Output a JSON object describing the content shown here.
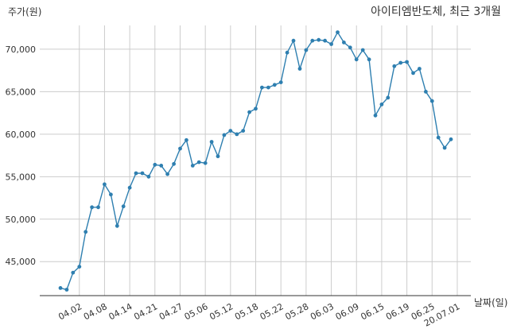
{
  "chart_data": {
    "type": "line",
    "title": "아이티엠반도체, 최근 3개월",
    "ylabel": "주가(원)",
    "xlabel": "날짜(일)",
    "ylim": [
      41000,
      72800
    ],
    "yticks": [
      45000,
      50000,
      55000,
      60000,
      65000,
      70000
    ],
    "ytick_labels": [
      "45,000",
      "50,000",
      "55,000",
      "60,000",
      "65,000",
      "70,000"
    ],
    "xtick_labels": [
      "04.02",
      "04.08",
      "04.14",
      "04.21",
      "04.27",
      "05.06",
      "05.12",
      "05.18",
      "05.22",
      "05.28",
      "06.03",
      "06.09",
      "06.15",
      "06.19",
      "06.25",
      "20.07.01"
    ],
    "xtick_index": [
      3,
      7,
      11,
      15,
      19,
      23,
      27,
      31,
      35,
      39,
      43,
      47,
      51,
      55,
      59,
      63
    ],
    "grid": true,
    "line_color": "#2e7fb0",
    "values": [
      41900,
      41700,
      43700,
      44400,
      48500,
      51400,
      51400,
      54100,
      52900,
      49200,
      51500,
      53700,
      55400,
      55400,
      55000,
      56400,
      56300,
      55300,
      56500,
      58300,
      59300,
      56300,
      56700,
      56600,
      59100,
      57400,
      59900,
      60400,
      60000,
      60400,
      62600,
      63000,
      65500,
      65500,
      65800,
      66100,
      69600,
      71000,
      67700,
      69900,
      71000,
      71100,
      71000,
      70600,
      72000,
      70800,
      70200,
      68800,
      69900,
      68800,
      62200,
      63500,
      64300,
      68000,
      68400,
      68500,
      67200,
      67700,
      65000,
      63900,
      59600,
      58400,
      59400
    ]
  }
}
